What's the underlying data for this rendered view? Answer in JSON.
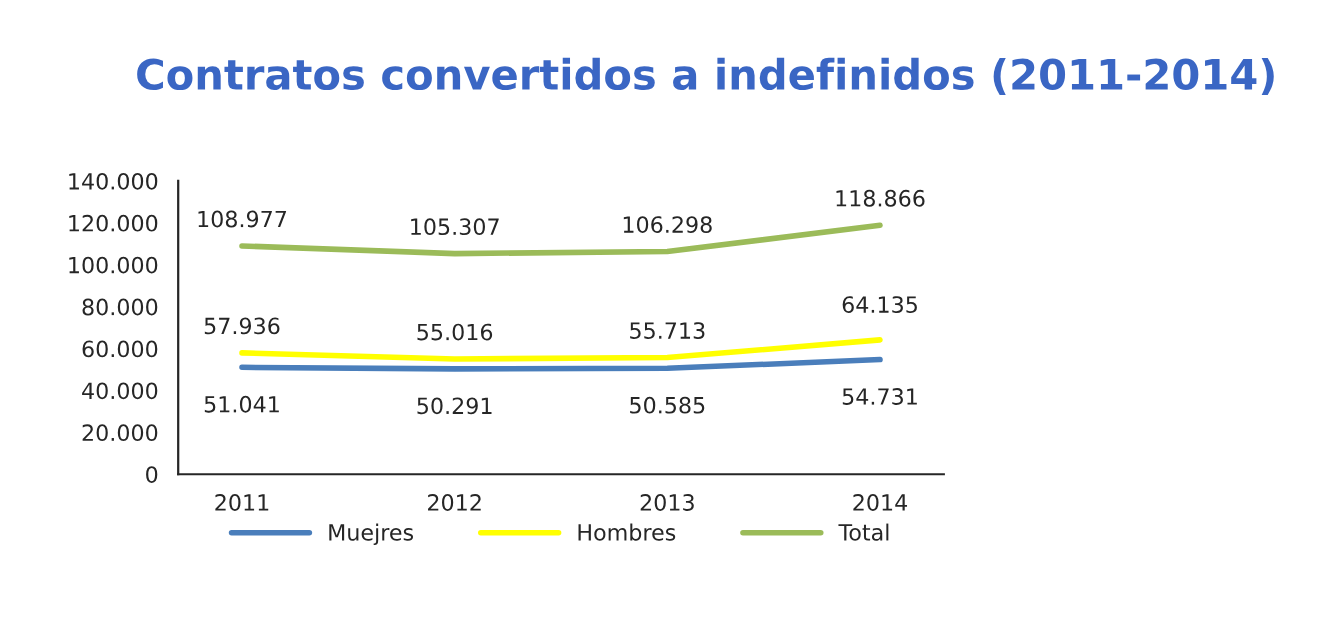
{
  "chart_data": {
    "type": "line",
    "title": "Contratos convertidos a indefinidos (2011-2014)",
    "categories": [
      "2011",
      "2012",
      "2013",
      "2014"
    ],
    "series": [
      {
        "name": "Muejres",
        "color": "#4a7ebb",
        "values": [
          51041,
          50291,
          50585,
          54731
        ],
        "value_labels": [
          "51.041",
          "50.291",
          "50.585",
          "54.731"
        ]
      },
      {
        "name": "Hombres",
        "color": "#ffff00",
        "values": [
          57936,
          55016,
          55713,
          64135
        ],
        "value_labels": [
          "57.936",
          "55.016",
          "55.713",
          "64.135"
        ]
      },
      {
        "name": "Total",
        "color": "#9bbb59",
        "values": [
          108977,
          105307,
          106298,
          118866
        ],
        "value_labels": [
          "108.977",
          "105.307",
          "106.298",
          "118.866"
        ]
      }
    ],
    "ylim": [
      0,
      140000
    ],
    "yticks": [
      0,
      {
        "value": 20000,
        "label": "20.000"
      },
      {
        "value": 40000,
        "label": "40.000"
      },
      {
        "value": 60000,
        "label": "60.000"
      },
      {
        "value": 80000,
        "label": "80.000"
      },
      {
        "value": 100000,
        "label": "100.000"
      },
      {
        "value": 120000,
        "label": "120.000"
      },
      {
        "value": 140000,
        "label": "140.000"
      }
    ],
    "grid": false,
    "legend": "bottom",
    "marker": "none",
    "line_style": "solid"
  }
}
